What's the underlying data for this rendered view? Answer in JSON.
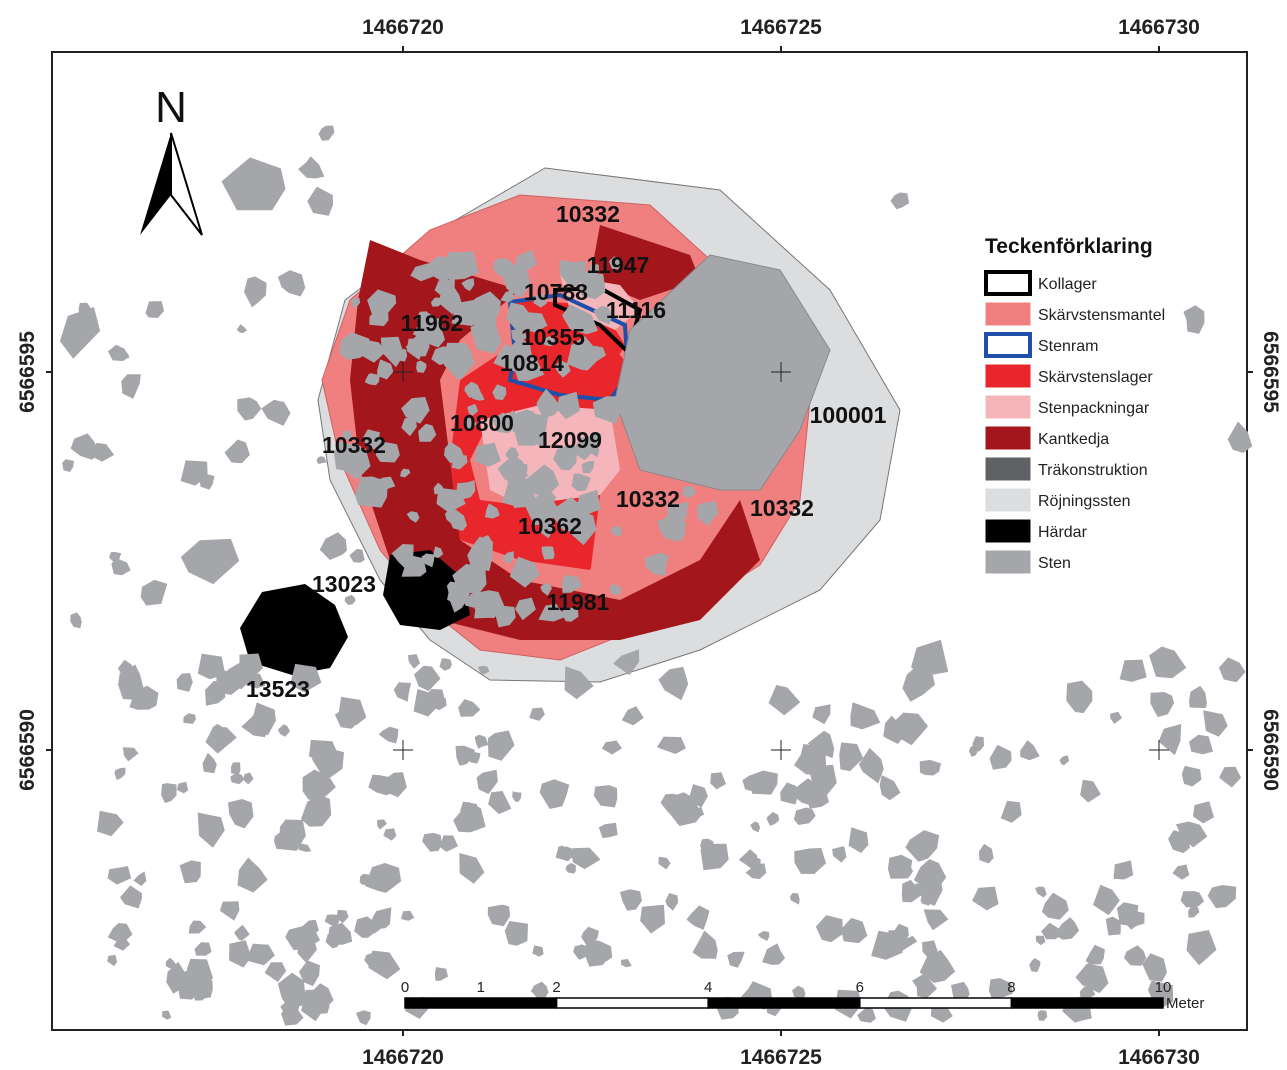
{
  "coordinates": {
    "x_ticks": [
      "1466720",
      "1466725",
      "1466730"
    ],
    "y_ticks": [
      "6566595",
      "6566590"
    ]
  },
  "north_arrow": {
    "label": "N"
  },
  "features": [
    "10332",
    "11947",
    "10788",
    "11116",
    "11962",
    "10355",
    "10814",
    "100001",
    "10800",
    "12099",
    "10332",
    "10332",
    "10332",
    "10362",
    "13023",
    "11981",
    "13523"
  ],
  "legend": {
    "title": "Teckenförklaring",
    "items": [
      {
        "label": "Kollager",
        "color": "#ffffff",
        "stroke": "#000000"
      },
      {
        "label": "Skärvstensmantel",
        "color": "#f08080",
        "stroke": "#f08080"
      },
      {
        "label": "Stenram",
        "color": "#ffffff",
        "stroke": "#1f4fa8"
      },
      {
        "label": "Skärvstenslager",
        "color": "#e8262b",
        "stroke": "#e8262b"
      },
      {
        "label": "Stenpackningar",
        "color": "#f4b6bb",
        "stroke": "#f4b6bb"
      },
      {
        "label": "Kantkedja",
        "color": "#a3171c",
        "stroke": "#a3171c"
      },
      {
        "label": "Träkonstruktion",
        "color": "#5f6165",
        "stroke": "#5f6165"
      },
      {
        "label": "Röjningssten",
        "color": "#dcdddf",
        "stroke": "#dcdddf"
      },
      {
        "label": "Härdar",
        "color": "#000000",
        "stroke": "#000000"
      },
      {
        "label": "Sten",
        "color": "#a4a6aa",
        "stroke": "#a4a6aa"
      }
    ]
  },
  "scale_bar": {
    "labels": [
      "0",
      "1",
      "2",
      "4",
      "6",
      "8",
      "10"
    ],
    "unit": "Meter"
  }
}
